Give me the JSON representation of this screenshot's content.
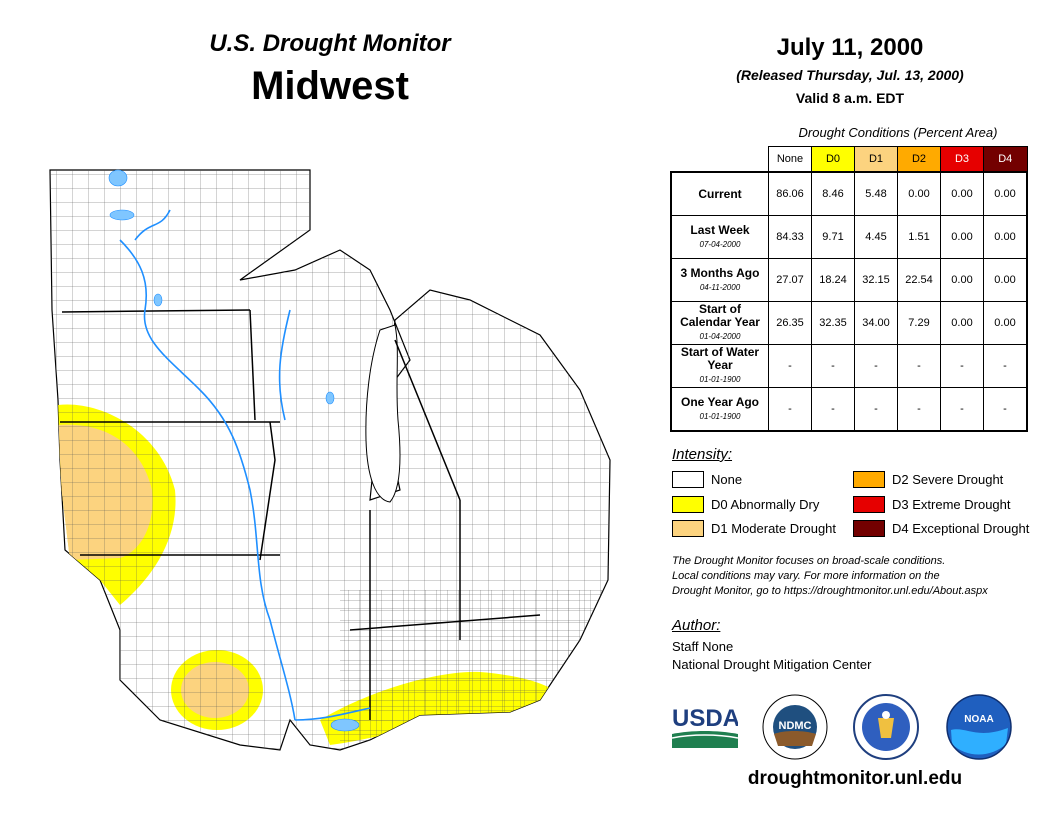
{
  "header": {
    "title": "U.S. Drought Monitor",
    "region": "Midwest",
    "date": "July 11, 2000",
    "released": "(Released Thursday, Jul. 13, 2000)",
    "valid": "Valid 8 a.m. EDT"
  },
  "table": {
    "caption": "Drought Conditions (Percent Area)",
    "columns": [
      {
        "label": "None",
        "color": "#ffffff"
      },
      {
        "label": "D0",
        "color": "#ffff00"
      },
      {
        "label": "D1",
        "color": "#fcd37f"
      },
      {
        "label": "D2",
        "color": "#ffaa00"
      },
      {
        "label": "D3",
        "color": "#e60000"
      },
      {
        "label": "D4",
        "color": "#730000"
      }
    ],
    "rows": [
      {
        "label": "Current",
        "sub": "",
        "values": [
          "86.06",
          "8.46",
          "5.48",
          "0.00",
          "0.00",
          "0.00"
        ]
      },
      {
        "label": "Last Week",
        "sub": "07-04-2000",
        "values": [
          "84.33",
          "9.71",
          "4.45",
          "1.51",
          "0.00",
          "0.00"
        ]
      },
      {
        "label": "3 Months Ago",
        "sub": "04-11-2000",
        "values": [
          "27.07",
          "18.24",
          "32.15",
          "22.54",
          "0.00",
          "0.00"
        ]
      },
      {
        "label": "Start of Calendar Year",
        "sub": "01-04-2000",
        "values": [
          "26.35",
          "32.35",
          "34.00",
          "7.29",
          "0.00",
          "0.00"
        ]
      },
      {
        "label": "Start of Water Year",
        "sub": "01-01-1900",
        "values": [
          "-",
          "-",
          "-",
          "-",
          "-",
          "-"
        ]
      },
      {
        "label": "One Year Ago",
        "sub": "01-01-1900",
        "values": [
          "-",
          "-",
          "-",
          "-",
          "-",
          "-"
        ]
      }
    ]
  },
  "legend": {
    "title": "Intensity:",
    "items": [
      {
        "label": "None",
        "color": "#ffffff"
      },
      {
        "label": "D0 Abnormally Dry",
        "color": "#ffff00"
      },
      {
        "label": "D1 Moderate Drought",
        "color": "#fcd37f"
      },
      {
        "label": "D2 Severe Drought",
        "color": "#ffaa00"
      },
      {
        "label": "D3 Extreme Drought",
        "color": "#e60000"
      },
      {
        "label": "D4 Exceptional Drought",
        "color": "#730000"
      }
    ]
  },
  "note": {
    "line1": "The Drought Monitor focuses on broad-scale conditions.",
    "line2": "Local conditions may vary. For more information on the",
    "line3": "Drought Monitor, go to https://droughtmonitor.unl.edu/About.aspx"
  },
  "author": {
    "title": "Author:",
    "name": "Staff None",
    "org": "National Drought Mitigation Center"
  },
  "logos": {
    "usda": "USDA",
    "ndmc": "NDMC",
    "noaa": "NOAA"
  },
  "footer": {
    "url": "droughtmonitor.unl.edu"
  }
}
